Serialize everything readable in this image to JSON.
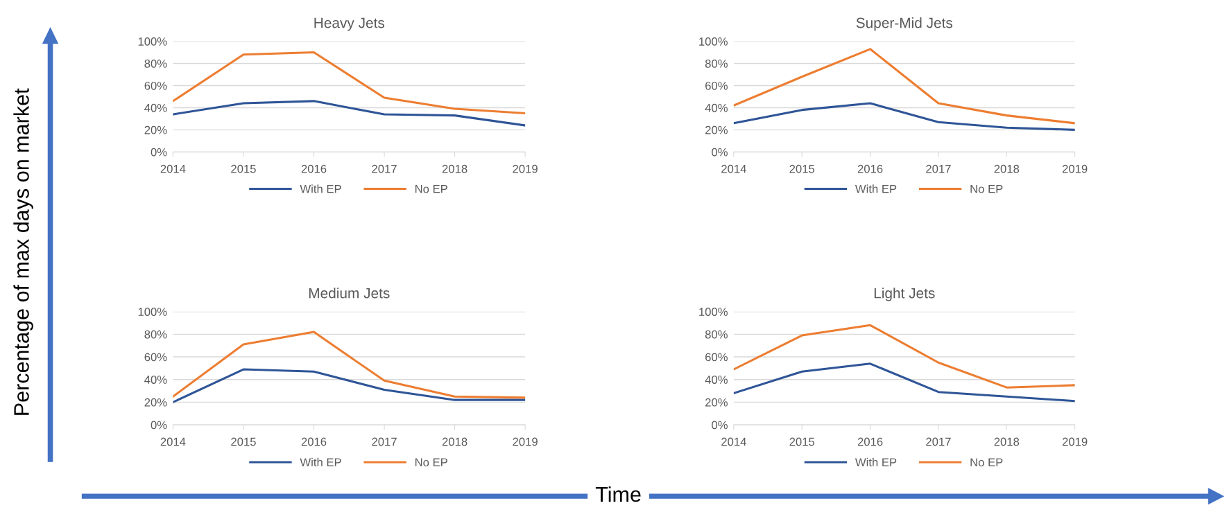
{
  "chart_data": [
    {
      "type": "line",
      "title": "Heavy Jets",
      "categories": [
        "2014",
        "2015",
        "2016",
        "2017",
        "2018",
        "2019"
      ],
      "ylim": [
        0,
        100
      ],
      "yticks": [
        {
          "value": 0,
          "label": "0%"
        },
        {
          "value": 20,
          "label": "20%"
        },
        {
          "value": 40,
          "label": "40%"
        },
        {
          "value": 60,
          "label": "60%"
        },
        {
          "value": 80,
          "label": "80%"
        },
        {
          "value": 100,
          "label": "100%"
        }
      ],
      "grid": "y",
      "legend": "bottom",
      "marker": "none",
      "line_style": "solid",
      "series": [
        {
          "name": "With EP",
          "color": "#2f5597",
          "values": [
            34,
            44,
            46,
            34,
            33,
            24
          ]
        },
        {
          "name": "No EP",
          "color": "#ed7d31",
          "values": [
            46,
            88,
            90,
            49,
            39,
            35
          ]
        }
      ],
      "annotations": [
        "Percentage of max days on market",
        "Time"
      ]
    },
    {
      "type": "line",
      "title": "Super-Mid Jets",
      "categories": [
        "2014",
        "2015",
        "2016",
        "2017",
        "2018",
        "2019"
      ],
      "ylim": [
        0,
        100
      ],
      "yticks": [
        {
          "value": 0,
          "label": "0%"
        },
        {
          "value": 20,
          "label": "20%"
        },
        {
          "value": 40,
          "label": "40%"
        },
        {
          "value": 60,
          "label": "60%"
        },
        {
          "value": 80,
          "label": "80%"
        },
        {
          "value": 100,
          "label": "100%"
        }
      ],
      "grid": "y",
      "legend": "bottom",
      "marker": "none",
      "line_style": "solid",
      "series": [
        {
          "name": "With EP",
          "color": "#2f5597",
          "values": [
            26,
            38,
            44,
            27,
            22,
            20
          ]
        },
        {
          "name": "No EP",
          "color": "#ed7d31",
          "values": [
            42,
            68,
            93,
            44,
            33,
            26
          ]
        }
      ]
    },
    {
      "type": "line",
      "title": "Medium Jets",
      "categories": [
        "2014",
        "2015",
        "2016",
        "2017",
        "2018",
        "2019"
      ],
      "ylim": [
        0,
        100
      ],
      "yticks": [
        {
          "value": 0,
          "label": "0%"
        },
        {
          "value": 20,
          "label": "20%"
        },
        {
          "value": 40,
          "label": "40%"
        },
        {
          "value": 60,
          "label": "60%"
        },
        {
          "value": 80,
          "label": "80%"
        },
        {
          "value": 100,
          "label": "100%"
        }
      ],
      "grid": "y",
      "legend": "bottom",
      "marker": "none",
      "line_style": "solid",
      "series": [
        {
          "name": "With EP",
          "color": "#2f5597",
          "values": [
            20,
            49,
            47,
            31,
            22,
            22
          ]
        },
        {
          "name": "No EP",
          "color": "#ed7d31",
          "values": [
            25,
            71,
            82,
            39,
            25,
            24
          ]
        }
      ]
    },
    {
      "type": "line",
      "title": "Light Jets",
      "categories": [
        "2014",
        "2015",
        "2016",
        "2017",
        "2018",
        "2019"
      ],
      "ylim": [
        0,
        100
      ],
      "yticks": [
        {
          "value": 0,
          "label": "0%"
        },
        {
          "value": 20,
          "label": "20%"
        },
        {
          "value": 40,
          "label": "40%"
        },
        {
          "value": 60,
          "label": "60%"
        },
        {
          "value": 80,
          "label": "80%"
        },
        {
          "value": 100,
          "label": "100%"
        }
      ],
      "grid": "y",
      "legend": "bottom",
      "marker": "none",
      "line_style": "solid",
      "series": [
        {
          "name": "With EP",
          "color": "#2f5597",
          "values": [
            28,
            47,
            54,
            29,
            25,
            21
          ]
        },
        {
          "name": "No EP",
          "color": "#ed7d31",
          "values": [
            49,
            79,
            88,
            55,
            33,
            35
          ]
        }
      ]
    }
  ]
}
